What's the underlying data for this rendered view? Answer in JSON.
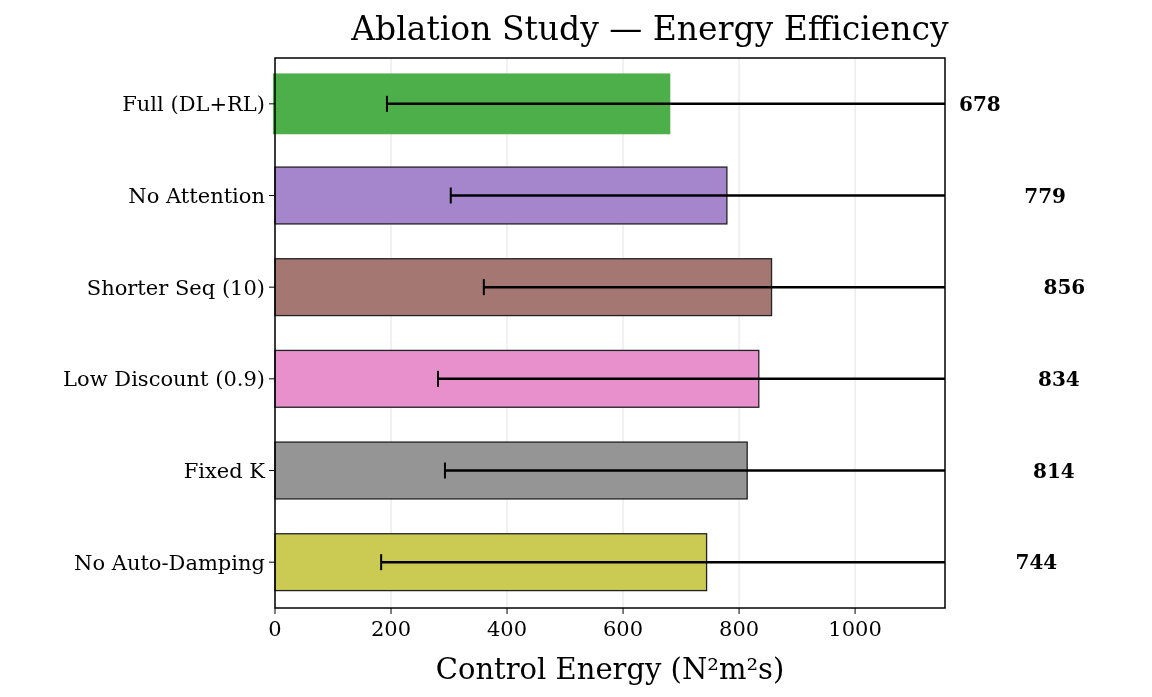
{
  "chart_data": {
    "type": "bar",
    "orientation": "horizontal",
    "title": "Ablation Study — Energy Efficiency",
    "xlabel": "Control Energy (N²m²s)",
    "categories": [
      "Full (DL+RL)",
      "No Attention",
      "Shorter Seq (10)",
      "Low Discount (0.9)",
      "Fixed K",
      "No Auto-Damping"
    ],
    "values": [
      678,
      779,
      856,
      834,
      814,
      744
    ],
    "colors": [
      "#4daf4a",
      "#a07ec8",
      "#a0706a",
      "#e68ac8",
      "#8f8f8f",
      "#c8c84a"
    ],
    "errors": [
      [
        193,
        1155
      ],
      [
        303,
        1155
      ],
      [
        360,
        1155
      ],
      [
        281,
        1155
      ],
      [
        293,
        1155
      ],
      [
        183,
        1155
      ]
    ],
    "annotations": [
      "678",
      "779",
      "856",
      "834",
      "814",
      "744"
    ],
    "xlim": [
      0,
      1155
    ],
    "xticks": [
      0,
      200,
      400,
      600,
      800,
      1000
    ],
    "grid": "x"
  }
}
